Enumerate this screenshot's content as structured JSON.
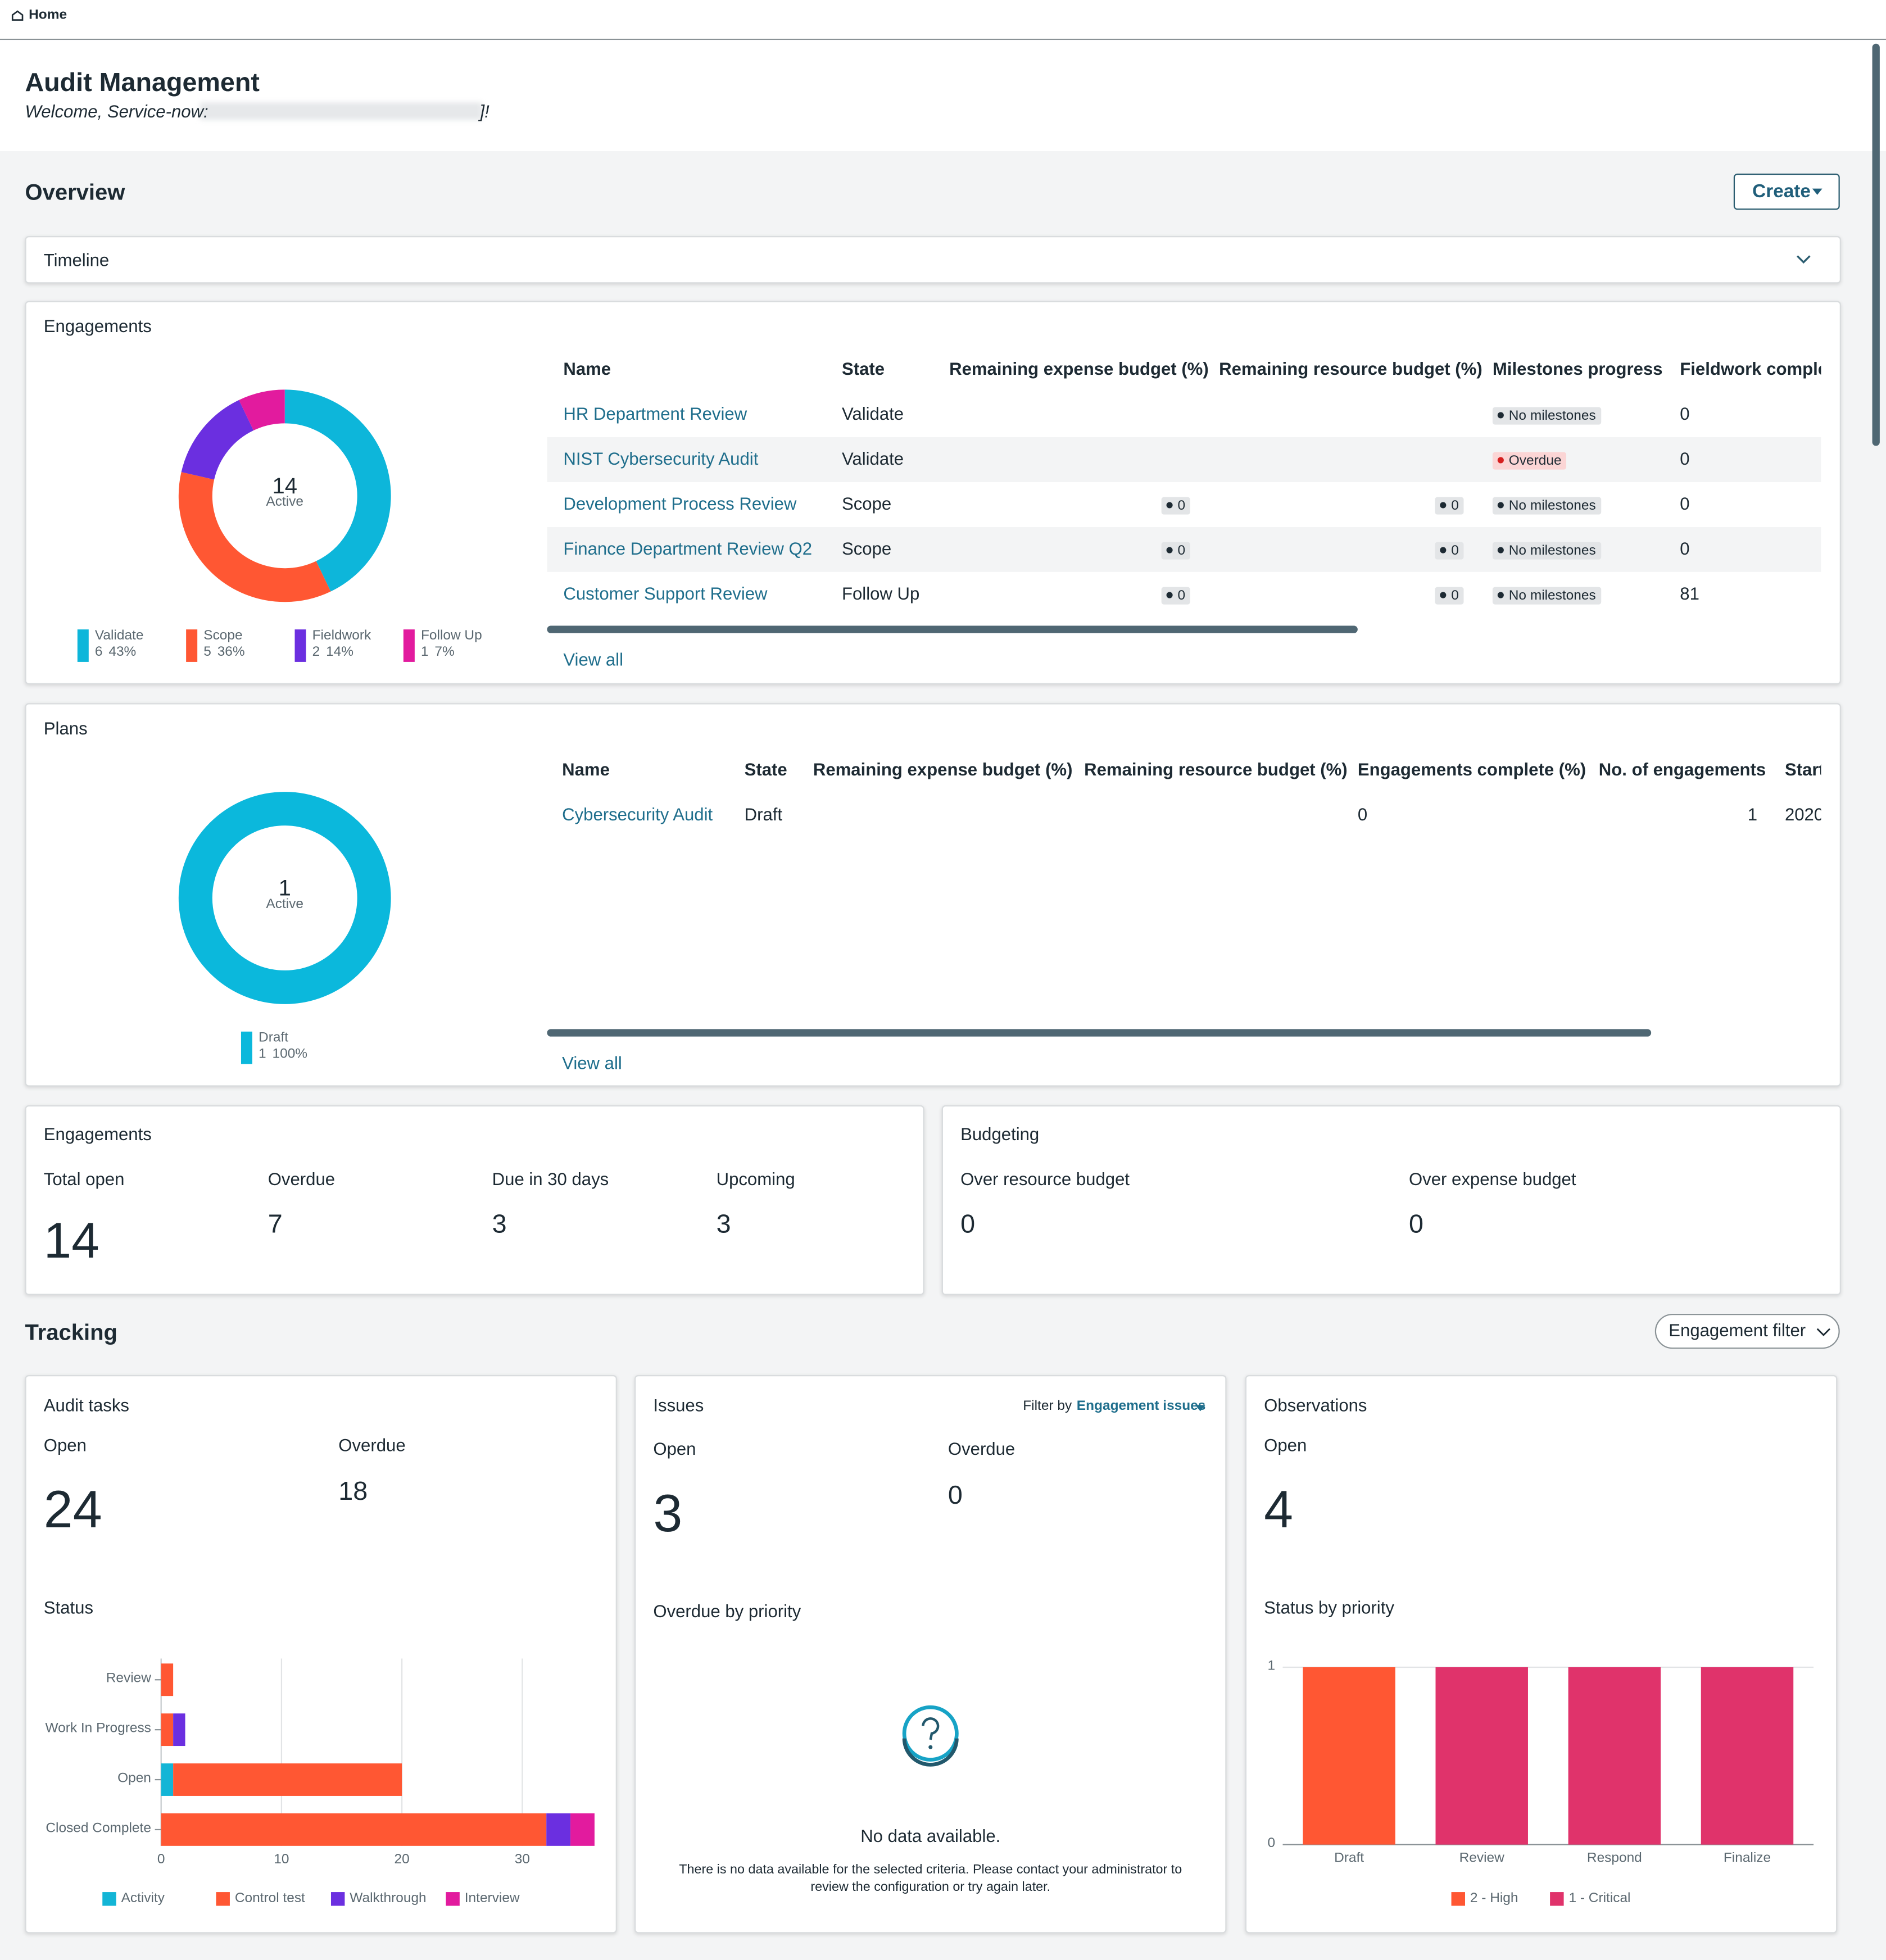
{
  "breadcrumb": {
    "home": "Home"
  },
  "header": {
    "title": "Audit Management",
    "welcome": "Welcome, Service-now:",
    "welcome_end": "]!"
  },
  "overview": {
    "title": "Overview",
    "create_button": "Create",
    "timeline": "Timeline"
  },
  "engagements": {
    "title": "Engagements",
    "chart_data": {
      "type": "donut",
      "center_value": 14,
      "center_label": "Active",
      "categories": [
        "Validate",
        "Scope",
        "Fieldwork",
        "Follow Up"
      ],
      "values": [
        6,
        5,
        2,
        1
      ],
      "percent_labels": [
        "43%",
        "36%",
        "14%",
        "7%"
      ],
      "colors": [
        "#0db6da",
        "#ff5733",
        "#6b2fe0",
        "#e21b9e"
      ]
    },
    "table": {
      "columns": [
        "Name",
        "State",
        "Remaining expense budget (%)",
        "Remaining resource budget (%)",
        "Milestones progress",
        "Fieldwork comple"
      ],
      "rows": [
        [
          "HR Department Review",
          "Validate",
          null,
          null,
          "No milestones",
          0
        ],
        [
          "NIST Cybersecurity Audit",
          "Validate",
          null,
          null,
          "Overdue",
          0
        ],
        [
          "Development Process Review",
          "Scope",
          0,
          0,
          "No milestones",
          0
        ],
        [
          "Finance Department Review Q2",
          "Scope",
          0,
          0,
          "No milestones",
          0
        ],
        [
          "Customer Support Review",
          "Follow Up",
          0,
          0,
          "No milestones",
          81
        ]
      ]
    },
    "view_all": "View all"
  },
  "plans": {
    "title": "Plans",
    "chart_data": {
      "type": "donut",
      "center_value": 1,
      "center_label": "Active",
      "categories": [
        "Draft"
      ],
      "values": [
        1
      ],
      "percent_labels": [
        "100%"
      ],
      "colors": [
        "#0bb8dc"
      ]
    },
    "table": {
      "columns": [
        "Name",
        "State",
        "Remaining expense budget (%)",
        "Remaining resource budget (%)",
        "Engagements complete (%)",
        "No. of engagements",
        "Start"
      ],
      "rows": [
        [
          "Cybersecurity Audit",
          "Draft",
          null,
          null,
          0,
          1,
          "2020"
        ]
      ]
    },
    "view_all": "View all"
  },
  "engagement_stats": {
    "title": "Engagements",
    "stats": [
      {
        "label": "Total open",
        "value": 14
      },
      {
        "label": "Overdue",
        "value": 7
      },
      {
        "label": "Due in 30 days",
        "value": 3
      },
      {
        "label": "Upcoming",
        "value": 3
      }
    ]
  },
  "budgeting": {
    "title": "Budgeting",
    "stats": [
      {
        "label": "Over resource budget",
        "value": 0
      },
      {
        "label": "Over expense budget",
        "value": 0
      }
    ]
  },
  "tracking": {
    "title": "Tracking",
    "filter_button": "Engagement filter"
  },
  "audit_tasks": {
    "title": "Audit tasks",
    "stats": [
      {
        "label": "Open",
        "value": 24
      },
      {
        "label": "Overdue",
        "value": 18
      }
    ],
    "status_title": "Status",
    "chart_data": {
      "type": "bar",
      "orientation": "horizontal",
      "stacked": true,
      "categories": [
        "Review",
        "Work In Progress",
        "Open",
        "Closed Complete"
      ],
      "series": [
        {
          "name": "Activity",
          "color": "#13b5d6",
          "values": [
            0,
            0,
            1,
            0
          ]
        },
        {
          "name": "Control test",
          "color": "#ff5733",
          "values": [
            1,
            1,
            19,
            32
          ]
        },
        {
          "name": "Walkthrough",
          "color": "#6b2fe0",
          "values": [
            0,
            1,
            0,
            2
          ]
        },
        {
          "name": "Interview",
          "color": "#e21b9e",
          "values": [
            0,
            0,
            0,
            2
          ]
        }
      ],
      "xlim": [
        0,
        36
      ],
      "xticks": [
        0,
        10,
        20,
        30
      ],
      "grid": true
    }
  },
  "issues": {
    "title": "Issues",
    "filter_label": "Filter by",
    "filter_value": "Engagement issues",
    "stats": [
      {
        "label": "Open",
        "value": 3
      },
      {
        "label": "Overdue",
        "value": 0
      }
    ],
    "overdue_title": "Overdue by priority",
    "empty_title": "No data available.",
    "empty_message_1": "There is no data available for the selected criteria. Please contact your administrator to",
    "empty_message_2": "review the configuration or try again later."
  },
  "observations": {
    "title": "Observations",
    "stats": [
      {
        "label": "Open",
        "value": 4
      }
    ],
    "status_title": "Status by priority",
    "chart_data": {
      "type": "bar",
      "stacked": true,
      "categories": [
        "Draft",
        "Review",
        "Respond",
        "Finalize"
      ],
      "series": [
        {
          "name": "2 - High",
          "color": "#ff5733",
          "values": [
            1,
            0,
            0,
            0
          ]
        },
        {
          "name": "1 - Critical",
          "color": "#e0336b",
          "values": [
            0,
            1,
            1,
            1
          ]
        }
      ],
      "ylim": [
        0,
        1
      ],
      "yticks": [
        0,
        1
      ],
      "grid": true
    }
  }
}
